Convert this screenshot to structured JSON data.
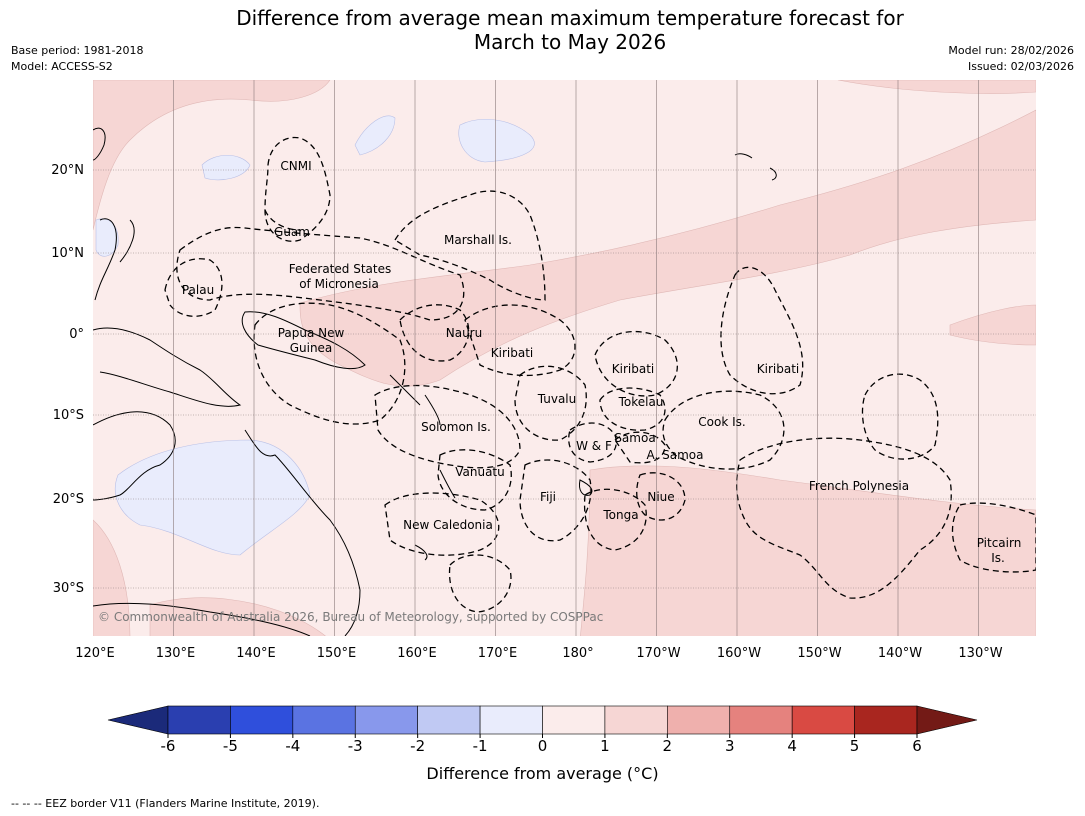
{
  "title_line1": "Difference from average mean maximum temperature forecast for",
  "title_line2": "March to May 2026",
  "meta_left": [
    "Base period: 1981-2018",
    "Model: ACCESS-S2"
  ],
  "meta_right": [
    "Model run: 28/02/2026",
    "Issued: 02/03/2026"
  ],
  "copyright": "© Commonwealth of Australia 2026, Bureau of Meteorology, supported by COSPPac",
  "lon_labels": [
    "120°E",
    "130°E",
    "140°E",
    "150°E",
    "160°E",
    "170°E",
    "180°",
    "170°W",
    "160°W",
    "150°W",
    "140°W",
    "130°W"
  ],
  "lat_labels": [
    "20°N",
    "10°N",
    "0°",
    "10°S",
    "20°S",
    "30°S"
  ],
  "regions": [
    {
      "name": "CNMI"
    },
    {
      "name": "Guam"
    },
    {
      "name": "Marshall Is."
    },
    {
      "name": "Federated States"
    },
    {
      "name": "of Micronesia"
    },
    {
      "name": "Palau"
    },
    {
      "name": "Papua New"
    },
    {
      "name": "Guinea"
    },
    {
      "name": "Nauru"
    },
    {
      "name": "Kiribati"
    },
    {
      "name": "Kiribati"
    },
    {
      "name": "Kiribati"
    },
    {
      "name": "Tuvalu"
    },
    {
      "name": "Tokelau"
    },
    {
      "name": "Cook Is."
    },
    {
      "name": "Solomon Is."
    },
    {
      "name": "Samoa"
    },
    {
      "name": "W & F"
    },
    {
      "name": "A. Samoa"
    },
    {
      "name": "Vanuatu"
    },
    {
      "name": "Fiji"
    },
    {
      "name": "Niue"
    },
    {
      "name": "French Polynesia"
    },
    {
      "name": "Tonga"
    },
    {
      "name": "New Caledonia"
    },
    {
      "name": "Pitcairn"
    },
    {
      "name": "Is."
    }
  ],
  "colorbar": {
    "ticks": [
      "-6",
      "-5",
      "-4",
      "-3",
      "-2",
      "-1",
      "0",
      "1",
      "2",
      "3",
      "4",
      "5",
      "6"
    ],
    "colors": [
      "#2a3fb0",
      "#2f4fdc",
      "#5a73e2",
      "#8898ec",
      "#c0c9f3",
      "#e9ecfc",
      "#fbeceb",
      "#f6d6d4",
      "#efb0ad",
      "#e5827e",
      "#d94a43",
      "#a9261f"
    ],
    "under_color": "#1b2a7a",
    "over_color": "#731a16",
    "label": "Difference from average (°C)"
  },
  "footer": "--  --  -- EEZ border V11 (Flanders Marine Institute, 2019)."
}
